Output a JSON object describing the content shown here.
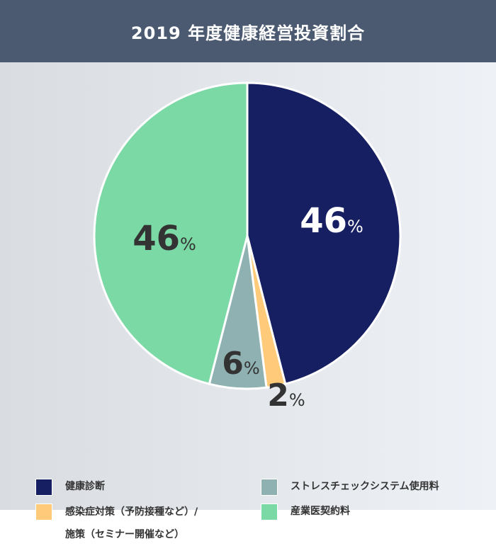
{
  "chart_data": {
    "type": "pie",
    "title": "2019 年度健康経営投資割合",
    "slices": [
      {
        "label": "健康診断",
        "value": 46,
        "display": "46",
        "color": "#171f63",
        "label_color": "#ffffff"
      },
      {
        "label": "感染症対策（予防接種など）/\n施策（セミナー開催など）",
        "label_lines": [
          "感染症対策（予防接種など）/",
          "施策（セミナー開催など）"
        ],
        "value": 2,
        "display": "2",
        "color": "#ffcb7a",
        "label_color": "#333333"
      },
      {
        "label": "ストレスチェックシステム使用料",
        "value": 6,
        "display": "6",
        "color": "#8fb1b1",
        "label_color": "#333333"
      },
      {
        "label": "産業医契約料",
        "value": 46,
        "display": "46",
        "color": "#7ad9a5",
        "label_color": "#333333"
      }
    ],
    "unit": "%",
    "start": "top",
    "direction": "clockwise",
    "legend_placement": "bottom"
  }
}
